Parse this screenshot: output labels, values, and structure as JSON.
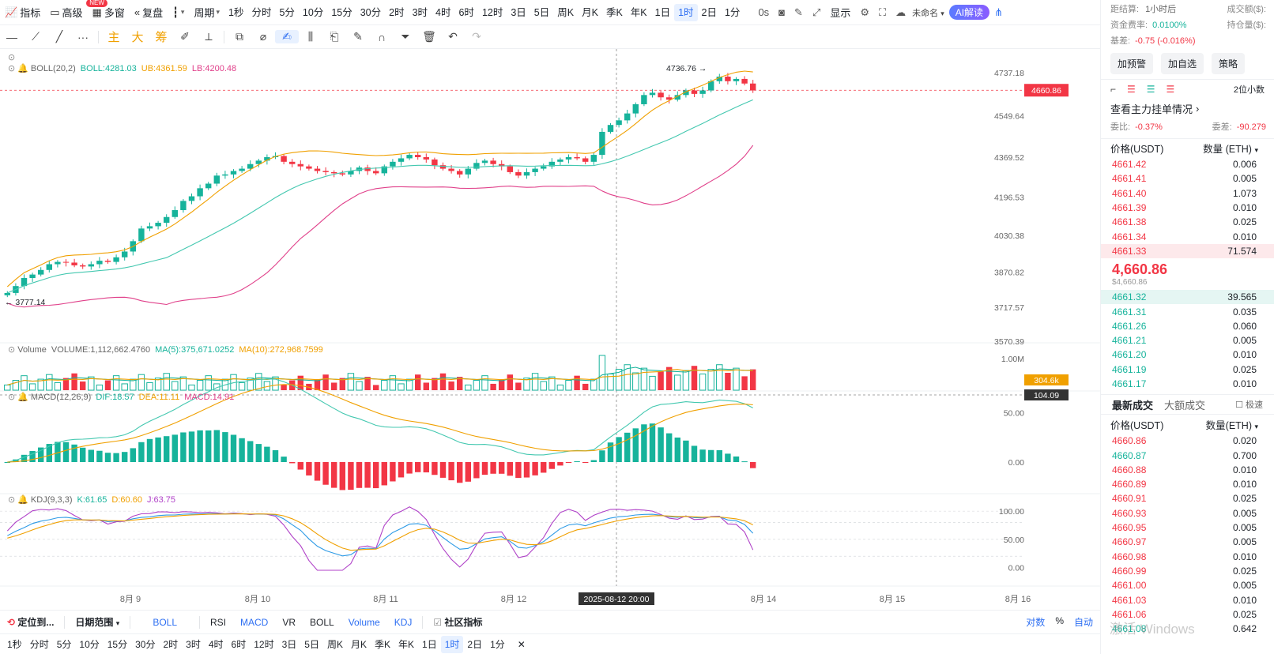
{
  "toolbar": {
    "indicator_label": "指标",
    "advanced_label": "高级",
    "new_badge": "NEW",
    "multi_window_label": "多窗",
    "replay_label": "复盘",
    "period_label": "周期",
    "periods": [
      "1秒",
      "分时",
      "5分",
      "10分",
      "15分",
      "30分",
      "2时",
      "3时",
      "4时",
      "6时",
      "12时",
      "3日",
      "5日",
      "周K",
      "月K",
      "季K",
      "年K",
      "1日",
      "1时",
      "2日",
      "1分"
    ],
    "active_period": "1时",
    "countdown": "0s",
    "display_label": "显示",
    "unnamed_label": "未命名",
    "ai_label": "AI解读"
  },
  "drawing_tools": {
    "labels": [
      "主",
      "大",
      "筹"
    ]
  },
  "chart": {
    "boll_legend": {
      "name": "BOLL(20,2)",
      "boll": "BOLL:4281.03",
      "ub": "UB:4361.59",
      "lb": "LB:4200.48"
    },
    "volume_legend": {
      "name": "Volume",
      "volume": "VOLUME:1,112,662.4760",
      "ma5": "MA(5):375,671.0252",
      "ma10": "MA(10):272,968.7599"
    },
    "macd_legend": {
      "name": "MACD(12,26,9)",
      "dif": "DIF:18.57",
      "dea": "DEA:11.11",
      "macd": "MACD:14.91"
    },
    "kdj_legend": {
      "name": "KDJ(9,3,3)",
      "k": "K:61.65",
      "d": "D:60.60",
      "j": "J:63.75"
    },
    "current_price_tag": "4660.86",
    "volume_tag": "304.6k",
    "crosshair_value_tag": "104.09",
    "crosshair_time": "2025-08-12 20:00",
    "high_label": "4736.76",
    "low_label": "3777.14",
    "date_axis": [
      "8月 9",
      "8月 10",
      "8月 11",
      "8月 12",
      "8月 14",
      "8月 15",
      "8月 16"
    ],
    "price_axis": [
      "4737.18",
      "4549.64",
      "4369.52",
      "4196.53",
      "4030.38",
      "3870.82",
      "3717.57",
      "3570.39"
    ],
    "volume_axis": [
      "1.00M"
    ],
    "macd_axis": [
      "50.00",
      "0.00"
    ],
    "kdj_axis": [
      "100.00",
      "50.00",
      "0.00"
    ],
    "colors": {
      "up": "#16b39b",
      "down": "#f23645",
      "boll_mid": "#44c8b0",
      "boll_upper": "#f0a000",
      "boll_lower": "#e0408a"
    }
  },
  "chart_data": [
    {
      "type": "candlestick",
      "title": "",
      "ylim": [
        3570.39,
        4737.18
      ],
      "high": 4736.76,
      "low": 3777.14,
      "last_price": 4660.86,
      "closes": [
        3780,
        3810,
        3845,
        3860,
        3880,
        3905,
        3915,
        3912,
        3900,
        3895,
        3905,
        3920,
        3915,
        3935,
        3960,
        4005,
        4060,
        4070,
        4085,
        4110,
        4140,
        4180,
        4200,
        4235,
        4255,
        4290,
        4295,
        4310,
        4320,
        4340,
        4355,
        4370,
        4375,
        4350,
        4340,
        4330,
        4320,
        4310,
        4305,
        4300,
        4295,
        4310,
        4325,
        4310,
        4300,
        4330,
        4350,
        4365,
        4380,
        4370,
        4360,
        4335,
        4320,
        4310,
        4295,
        4320,
        4345,
        4355,
        4340,
        4330,
        4305,
        4290,
        4305,
        4320,
        4330,
        4350,
        4360,
        4370,
        4365,
        4350,
        4380,
        4480,
        4510,
        4530,
        4560,
        4600,
        4640,
        4650,
        4630,
        4620,
        4640,
        4660,
        4645,
        4660,
        4700,
        4720,
        4700,
        4710,
        4690,
        4660
      ]
    },
    {
      "type": "bar",
      "title": "Volume",
      "ylim": [
        0,
        1000000
      ],
      "series": [
        {
          "name": "VOLUME",
          "latest": 1112662.476
        },
        {
          "name": "MA(5)",
          "latest": 375671.0252
        },
        {
          "name": "MA(10)",
          "latest": 272968.7599
        }
      ]
    },
    {
      "type": "line",
      "title": "MACD(12,26,9)",
      "ylim": [
        -20,
        60
      ],
      "series": [
        {
          "name": "DIF",
          "latest": 18.57
        },
        {
          "name": "DEA",
          "latest": 11.11
        },
        {
          "name": "MACD",
          "latest": 14.91
        }
      ]
    },
    {
      "type": "line",
      "title": "KDJ(9,3,3)",
      "ylim": [
        0,
        100
      ],
      "series": [
        {
          "name": "K",
          "latest": 61.65
        },
        {
          "name": "D",
          "latest": 60.6
        },
        {
          "name": "J",
          "latest": 63.75
        }
      ]
    }
  ],
  "bottom_bar": {
    "locate_label": "定位到...",
    "date_range_label": "日期范围",
    "indicators": [
      "BOLL",
      "RSI",
      "MACD",
      "VR",
      "BOLL",
      "Volume",
      "KDJ"
    ],
    "community_label": "社区指标",
    "log_label": "对数",
    "percent_label": "%",
    "auto_label": "自动",
    "periods": [
      "1秒",
      "分时",
      "5分",
      "10分",
      "15分",
      "30分",
      "2时",
      "3时",
      "4时",
      "6时",
      "12时",
      "3日",
      "5日",
      "周K",
      "月K",
      "季K",
      "年K",
      "1日",
      "1时",
      "2日",
      "1分"
    ],
    "active_period": "1时"
  },
  "right_panel": {
    "settle_label": "距结算:",
    "settle_value": "1小时后",
    "volume_label": "成交额($):",
    "funding_label": "资金费率:",
    "funding_value": "0.0100%",
    "open_interest_label": "持仓量($):",
    "basis_label": "基差:",
    "basis_value": "-0.75 (-0.016%)",
    "buttons": [
      "加预警",
      "加自选",
      "策略"
    ],
    "decimals_label": "2位小数",
    "book_link": "查看主力挂单情况",
    "ratio_label": "委比:",
    "ratio_value": "-0.37%",
    "diff_label": "委差:",
    "diff_value": "-90.279",
    "price_header": "价格(USDT)",
    "qty_header": "数量 (ETH)",
    "asks": [
      {
        "price": "4661.42",
        "qty": "0.006"
      },
      {
        "price": "4661.41",
        "qty": "0.005"
      },
      {
        "price": "4661.40",
        "qty": "1.073"
      },
      {
        "price": "4661.39",
        "qty": "0.010"
      },
      {
        "price": "4661.38",
        "qty": "0.025"
      },
      {
        "price": "4661.34",
        "qty": "0.010"
      },
      {
        "price": "4661.33",
        "qty": "71.574"
      }
    ],
    "last_price": "4,660.86",
    "last_price_usd": "$4,660.86",
    "bids": [
      {
        "price": "4661.32",
        "qty": "39.565"
      },
      {
        "price": "4661.31",
        "qty": "0.035"
      },
      {
        "price": "4661.26",
        "qty": "0.060"
      },
      {
        "price": "4661.21",
        "qty": "0.005"
      },
      {
        "price": "4661.20",
        "qty": "0.010"
      },
      {
        "price": "4661.19",
        "qty": "0.025"
      },
      {
        "price": "4661.17",
        "qty": "0.010"
      }
    ],
    "trade_tab_latest": "最新成交",
    "trade_tab_large": "大额成交",
    "fast_label": "极速",
    "trades_price_header": "价格(USDT)",
    "trades_qty_header": "数量(ETH)",
    "trades": [
      {
        "price": "4660.86",
        "qty": "0.020",
        "side": "down"
      },
      {
        "price": "4660.87",
        "qty": "0.700",
        "side": "up"
      },
      {
        "price": "4660.88",
        "qty": "0.010",
        "side": "down"
      },
      {
        "price": "4660.89",
        "qty": "0.010",
        "side": "down"
      },
      {
        "price": "4660.91",
        "qty": "0.025",
        "side": "down"
      },
      {
        "price": "4660.93",
        "qty": "0.005",
        "side": "down"
      },
      {
        "price": "4660.95",
        "qty": "0.005",
        "side": "down"
      },
      {
        "price": "4660.97",
        "qty": "0.005",
        "side": "down"
      },
      {
        "price": "4660.98",
        "qty": "0.010",
        "side": "down"
      },
      {
        "price": "4660.99",
        "qty": "0.025",
        "side": "down"
      },
      {
        "price": "4661.00",
        "qty": "0.005",
        "side": "down"
      },
      {
        "price": "4661.03",
        "qty": "0.010",
        "side": "down"
      },
      {
        "price": "4661.06",
        "qty": "0.025",
        "side": "down"
      },
      {
        "price": "4661.08",
        "qty": "0.642",
        "side": "up"
      }
    ],
    "watermark": "激活 Windows"
  }
}
